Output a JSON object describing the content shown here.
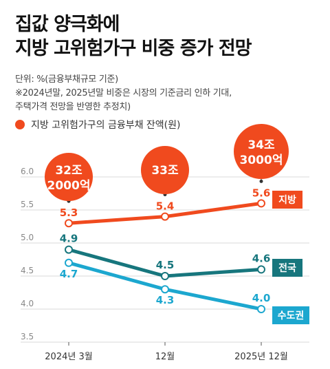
{
  "title_line1": "집값 양극화에",
  "title_line2": "지방 고위험가구 비중 증가 전망",
  "unit_note": "단위: %(금융부채규모 기준)",
  "footnote_line1": "※2024년말, 2025년말 비중은 시장의 기준금리 인하 기대,",
  "footnote_line2": "주택가격 전망을 반영한 추정치)",
  "legend_label": "지방 고위험가구의 금융부채 잔액(원)",
  "colors": {
    "local": "#f04a1e",
    "national": "#17767d",
    "capital": "#1ca7cf",
    "bubble": "#f04a1e"
  },
  "chart_data": {
    "type": "line",
    "categories": [
      "2024년 3월",
      "12월",
      "2025년 12월"
    ],
    "ylim": [
      3.5,
      6.0
    ],
    "yticks": [
      "3.5",
      "4.0",
      "4.5",
      "5.0",
      "5.5",
      "6.0"
    ],
    "series": [
      {
        "key": "local",
        "name": "지방",
        "values": [
          5.3,
          5.4,
          5.6
        ],
        "labels": [
          "5.3",
          "5.4",
          "5.6"
        ]
      },
      {
        "key": "national",
        "name": "전국",
        "values": [
          4.9,
          4.5,
          4.6
        ],
        "labels": [
          "4.9",
          "4.5",
          "4.6"
        ]
      },
      {
        "key": "capital",
        "name": "수도권",
        "values": [
          4.7,
          4.3,
          4.0
        ],
        "labels": [
          "4.7",
          "4.3",
          "4.0"
        ]
      }
    ],
    "debt_bubbles": [
      {
        "line1": "32조",
        "line2": "2000억"
      },
      {
        "line1": "33조",
        "line2": ""
      },
      {
        "line1": "34조",
        "line2": "3000억"
      }
    ]
  }
}
